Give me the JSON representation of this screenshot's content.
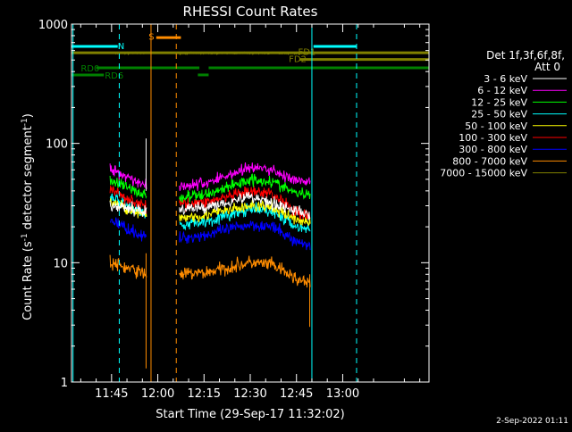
{
  "chart_data": {
    "type": "line",
    "title": "RHESSI Count Rates",
    "xlabel": "Start Time (29-Sep-17 11:32:02)",
    "ylabel_html": "Count Rate (s",
    "ylabel_sup1": "-1",
    "ylabel_mid": " detector segment",
    "ylabel_sup2": "-1",
    "ylabel_end": ")",
    "yscale": "log",
    "ylim": [
      1,
      1000
    ],
    "xlim_minutes": [
      692,
      808
    ],
    "y_ticks": [
      {
        "v": 1,
        "label": "1"
      },
      {
        "v": 10,
        "label": "10"
      },
      {
        "v": 100,
        "label": "100"
      },
      {
        "v": 1000,
        "label": "1000"
      }
    ],
    "x_ticks": [
      {
        "m": 705,
        "label": "11:45"
      },
      {
        "m": 720,
        "label": "12:00"
      },
      {
        "m": 735,
        "label": "12:15"
      },
      {
        "m": 750,
        "label": "12:30"
      },
      {
        "m": 765,
        "label": "12:45"
      },
      {
        "m": 780,
        "label": "13:00"
      }
    ],
    "legend_title_1": "Det 1f,3f,6f,8f,",
    "legend_title_2": "Att 0",
    "legend_placement": "right",
    "timestamp": "2-Sep-2022 01:11",
    "data_gaps_minutes": [
      [
        716.5,
        727
      ],
      [
        770,
        808
      ]
    ],
    "data_segments_minutes": [
      [
        704.5,
        716.5
      ],
      [
        727,
        769.5
      ]
    ],
    "series": [
      {
        "name": "3 - 6 keV",
        "color": "#ffffff",
        "early": [
          30,
          27
        ],
        "mid": [
          28,
          29,
          36,
          32,
          27,
          25
        ]
      },
      {
        "name": "6 - 12 keV",
        "color": "#ff00ff",
        "early": [
          62,
          44
        ],
        "mid": [
          44,
          46,
          63,
          60,
          48,
          46
        ]
      },
      {
        "name": "12 - 25 keV",
        "color": "#00ff00",
        "early": [
          50,
          36
        ],
        "mid": [
          35,
          37,
          50,
          48,
          38,
          37
        ]
      },
      {
        "name": "25 - 50 keV",
        "color": "#00ffff",
        "early": [
          36,
          25
        ],
        "mid": [
          21,
          22,
          28,
          27,
          20,
          19
        ]
      },
      {
        "name": "50 - 100 keV",
        "color": "#ffff00",
        "early": [
          33,
          24
        ],
        "mid": [
          24,
          25,
          30,
          29,
          23,
          22
        ]
      },
      {
        "name": "100 - 300 keV",
        "color": "#ff0000",
        "early": [
          41,
          29
        ],
        "mid": [
          31,
          32,
          39,
          38,
          27,
          24
        ]
      },
      {
        "name": "300 - 800 keV",
        "color": "#0000ff",
        "early": [
          23,
          16
        ],
        "mid": [
          16,
          17,
          21,
          20,
          15,
          14
        ]
      },
      {
        "name": "800 - 7000 keV",
        "color": "#ff8c00",
        "early": [
          10,
          8
        ],
        "mid": [
          8,
          8.2,
          10,
          9.6,
          7.3,
          6.5
        ]
      },
      {
        "name": "7000 - 15000 keV",
        "color": "#808000",
        "early": [
          570,
          570
        ],
        "mid": [
          570,
          570,
          570,
          570,
          570,
          570
        ]
      }
    ],
    "mid_knots_minutes": [
      727,
      735,
      750,
      757,
      765,
      769.5
    ],
    "early_knots_minutes": [
      704.5,
      716.5
    ],
    "vlines": [
      {
        "m": 692.5,
        "color": "#00ffff",
        "dash": false
      },
      {
        "m": 707.5,
        "color": "#00ffff",
        "dash": true
      },
      {
        "m": 717.8,
        "color": "#ff8c00",
        "dash": false
      },
      {
        "m": 726,
        "color": "#ff8c00",
        "dash": true
      },
      {
        "m": 770,
        "color": "#00ffff",
        "dash": false
      },
      {
        "m": 784.5,
        "color": "#00ffff",
        "dash": true
      }
    ],
    "flags": [
      {
        "label": "N",
        "color": "#00ffff",
        "y": 650,
        "m0": 692,
        "m1": 707,
        "label_m": 707,
        "label_y": 660
      },
      {
        "label": "N",
        "color": "#00ffff",
        "y": 650,
        "m0": 770.5,
        "m1": 784.5,
        "label_m": null,
        "label_y": null
      },
      {
        "label": "S",
        "color": "#ff8c00",
        "y": 770,
        "m0": 719.5,
        "m1": 727.5,
        "label_m": 717,
        "label_y": 790
      },
      {
        "label": "FD1",
        "color": "#808000",
        "y": 575,
        "m0": 692,
        "m1": 808,
        "label_m": 765.5,
        "label_y": 590
      },
      {
        "label": "FD2",
        "color": "#808000",
        "y": 505,
        "m0": 766,
        "m1": 808,
        "label_m": 762.5,
        "label_y": 515
      },
      {
        "label": "RD0",
        "color": "#008000",
        "y": 430,
        "m0": 700,
        "m1": 733.5,
        "label_m": 695,
        "label_y": 430
      },
      {
        "label": "RD0",
        "color": "#008000",
        "y": 430,
        "m0": 736.5,
        "m1": 808,
        "label_m": null,
        "label_y": null
      },
      {
        "label": "RD6",
        "color": "#008000",
        "y": 375,
        "m0": 692,
        "m1": 702.5,
        "label_m": 702.8,
        "label_y": 375
      },
      {
        "label": "RD6",
        "color": "#008000",
        "y": 375,
        "m0": 733,
        "m1": 736.5,
        "label_m": null,
        "label_y": null
      }
    ]
  }
}
